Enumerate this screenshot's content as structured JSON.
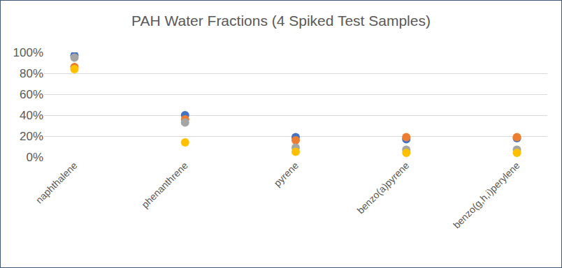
{
  "chart_data": {
    "type": "scatter",
    "title": "PAH Water Fractions (4 Spiked Test Samples)",
    "categories": [
      "naphthalene",
      "phenanthrene",
      "pyrene",
      "benzo(a)pyrene",
      "benzo(g,h,i)perylene"
    ],
    "series": [
      {
        "color": "#4472c4",
        "values": [
          97,
          40,
          19,
          17,
          18
        ]
      },
      {
        "color": "#ed7d31",
        "values": [
          86,
          36,
          16,
          19,
          19
        ]
      },
      {
        "color": "#a5a5a5",
        "values": [
          95,
          33,
          9,
          7,
          7
        ]
      },
      {
        "color": "#ffc000",
        "values": [
          84,
          14,
          5,
          4,
          4
        ]
      }
    ],
    "ylim": [
      0,
      100
    ],
    "yticks": [
      {
        "value": 0,
        "label": "0%"
      },
      {
        "value": 20,
        "label": "20%"
      },
      {
        "value": 40,
        "label": "40%"
      },
      {
        "value": 60,
        "label": "60%"
      },
      {
        "value": 80,
        "label": "80%"
      },
      {
        "value": 100,
        "label": "100%"
      }
    ],
    "grid": true,
    "marker": "circle"
  }
}
